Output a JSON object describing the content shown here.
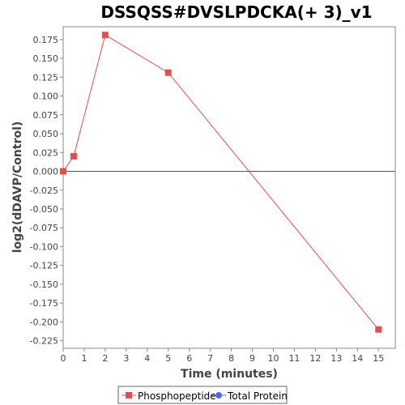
{
  "chart_data": {
    "type": "line",
    "title": "DSSQSS#DVSLPDCKA(+ 3)_v1",
    "xlabel": "Time (minutes)",
    "ylabel": "log2(dDAVP/Control)",
    "xlim": [
      0,
      15.8
    ],
    "ylim": [
      -0.235,
      0.192
    ],
    "x_ticks": [
      0,
      1,
      2,
      3,
      4,
      5,
      6,
      7,
      8,
      9,
      10,
      11,
      12,
      13,
      14,
      15
    ],
    "y_ticks": [
      0.175,
      0.15,
      0.125,
      0.1,
      0.075,
      0.05,
      0.025,
      0.0,
      -0.025,
      -0.05,
      -0.075,
      -0.1,
      -0.125,
      -0.15,
      -0.175,
      -0.2,
      -0.225
    ],
    "y_tick_labels": [
      "0.175",
      "0.150",
      "0.125",
      "0.100",
      "0.075",
      "0.050",
      "0.025",
      "0.000",
      "-0.025",
      "-0.050",
      "-0.075",
      "-0.100",
      "-0.125",
      "-0.150",
      "-0.175",
      "-0.200",
      "-0.225"
    ],
    "grid": false,
    "zero_line": true,
    "legend_position": "bottom",
    "series": [
      {
        "name": "Phosphopeptide",
        "color": "#e05050",
        "marker": "square",
        "x": [
          0,
          0.5,
          2,
          5,
          15
        ],
        "y": [
          0.0,
          0.02,
          0.181,
          0.131,
          -0.21
        ]
      },
      {
        "name": "Total Protein",
        "color": "#5566ee",
        "marker": "circle",
        "x": [],
        "y": []
      }
    ]
  }
}
